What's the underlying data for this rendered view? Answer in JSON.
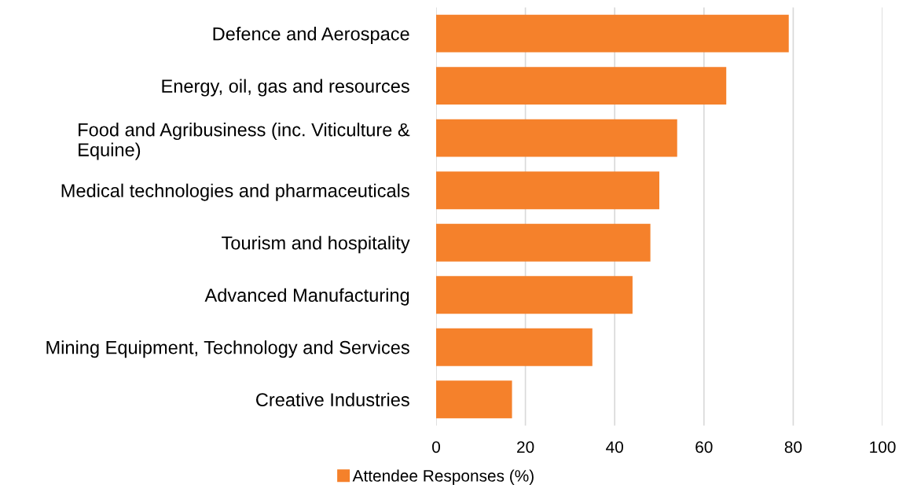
{
  "chart_data": {
    "type": "bar",
    "orientation": "horizontal",
    "categories": [
      "Defence and Aerospace",
      "Energy, oil, gas and resources",
      "Food and Agribusiness (inc. Viticulture &\nEquine)",
      "Medical technologies and pharmaceuticals",
      "Tourism and hospitality",
      "Advanced Manufacturing",
      "Mining Equipment, Technology and Services",
      "Creative Industries"
    ],
    "series": [
      {
        "name": "Attendee Responses (%)",
        "color": "#f5812b",
        "values": [
          79,
          65,
          54,
          50,
          48,
          44,
          35,
          17
        ]
      }
    ],
    "xlim": [
      0,
      100
    ],
    "xticks": [
      0,
      20,
      40,
      60,
      80,
      100
    ],
    "grid": "x",
    "legend": "bottom"
  }
}
